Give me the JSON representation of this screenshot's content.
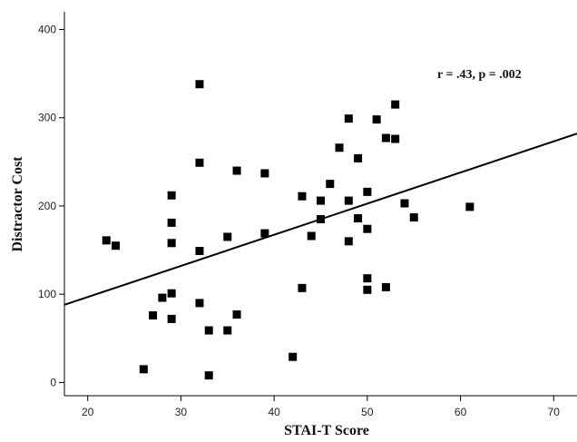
{
  "chart_data": {
    "type": "scatter",
    "title": "",
    "xlabel": "STAI-T Score",
    "ylabel": "Distractor Cost",
    "annotation": "r = .43, p = .002",
    "xlim": [
      17.5,
      72.5
    ],
    "ylim": [
      -15,
      420
    ],
    "xticks": [
      20,
      30,
      40,
      50,
      60,
      70
    ],
    "yticks": [
      0,
      100,
      200,
      300,
      400
    ],
    "grid": false,
    "legend": "none",
    "marker_color": "#000000",
    "fit_line": {
      "x": [
        17.5,
        72.5
      ],
      "y": [
        88,
        282
      ]
    },
    "points": [
      {
        "x": 22,
        "y": 161
      },
      {
        "x": 23,
        "y": 155
      },
      {
        "x": 26,
        "y": 15
      },
      {
        "x": 27,
        "y": 76
      },
      {
        "x": 28,
        "y": 96
      },
      {
        "x": 29,
        "y": 212
      },
      {
        "x": 29,
        "y": 181
      },
      {
        "x": 29,
        "y": 158
      },
      {
        "x": 29,
        "y": 101
      },
      {
        "x": 29,
        "y": 72
      },
      {
        "x": 32,
        "y": 338
      },
      {
        "x": 32,
        "y": 249
      },
      {
        "x": 32,
        "y": 149
      },
      {
        "x": 32,
        "y": 90
      },
      {
        "x": 33,
        "y": 59
      },
      {
        "x": 33,
        "y": 8
      },
      {
        "x": 35,
        "y": 165
      },
      {
        "x": 35,
        "y": 59
      },
      {
        "x": 36,
        "y": 240
      },
      {
        "x": 36,
        "y": 77
      },
      {
        "x": 39,
        "y": 237
      },
      {
        "x": 39,
        "y": 169
      },
      {
        "x": 42,
        "y": 29
      },
      {
        "x": 43,
        "y": 211
      },
      {
        "x": 43,
        "y": 107
      },
      {
        "x": 44,
        "y": 166
      },
      {
        "x": 45,
        "y": 206
      },
      {
        "x": 45,
        "y": 185
      },
      {
        "x": 46,
        "y": 225
      },
      {
        "x": 47,
        "y": 266
      },
      {
        "x": 48,
        "y": 299
      },
      {
        "x": 48,
        "y": 206
      },
      {
        "x": 48,
        "y": 160
      },
      {
        "x": 49,
        "y": 254
      },
      {
        "x": 49,
        "y": 186
      },
      {
        "x": 50,
        "y": 216
      },
      {
        "x": 50,
        "y": 174
      },
      {
        "x": 50,
        "y": 118
      },
      {
        "x": 50,
        "y": 105
      },
      {
        "x": 51,
        "y": 298
      },
      {
        "x": 52,
        "y": 277
      },
      {
        "x": 52,
        "y": 108
      },
      {
        "x": 53,
        "y": 315
      },
      {
        "x": 53,
        "y": 276
      },
      {
        "x": 54,
        "y": 203
      },
      {
        "x": 55,
        "y": 187
      },
      {
        "x": 61,
        "y": 199
      }
    ]
  }
}
